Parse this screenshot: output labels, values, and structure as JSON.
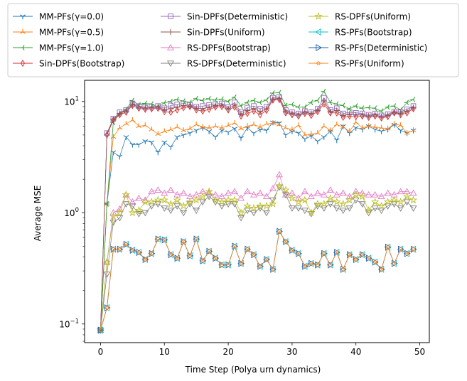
{
  "chart_data": {
    "type": "line",
    "title": "",
    "xlabel": "Time Step (Polya urn dynamics)",
    "ylabel": "Average MSE",
    "yscale": "log",
    "xlim": [
      -2.5,
      51.5
    ],
    "ylim": [
      0.068,
      15.5
    ],
    "xticks": [
      0,
      10,
      20,
      30,
      40,
      50
    ],
    "yticks": [
      {
        "value": 0.1,
        "base": "10",
        "exp": "−1"
      },
      {
        "value": 1,
        "base": "10",
        "exp": "0"
      },
      {
        "value": 10,
        "base": "10",
        "exp": "1"
      }
    ],
    "grid": false,
    "legend_placement": "top, 3 columns, above plot",
    "x": [
      0,
      1,
      2,
      3,
      4,
      5,
      6,
      7,
      8,
      9,
      10,
      11,
      12,
      13,
      14,
      15,
      16,
      17,
      18,
      19,
      20,
      21,
      22,
      23,
      24,
      25,
      26,
      27,
      28,
      29,
      30,
      31,
      32,
      33,
      34,
      35,
      36,
      37,
      38,
      39,
      40,
      41,
      42,
      43,
      44,
      45,
      46,
      47,
      48,
      49
    ],
    "series": [
      {
        "name": "MM-PFs(γ=0.0)",
        "color": "#1f77b4",
        "marker": "tri_down",
        "values": [
          0.088,
          1.2,
          3.5,
          3.2,
          4.8,
          4.1,
          4.1,
          4.4,
          4.3,
          3.5,
          4.3,
          3.9,
          4.8,
          5.0,
          5.2,
          5.5,
          5.8,
          5.4,
          4.8,
          5.5,
          5.3,
          5.7,
          4.7,
          5.8,
          5.2,
          5.6,
          5.5,
          6.5,
          6.4,
          5.0,
          5.4,
          5.2,
          4.6,
          4.9,
          4.4,
          4.8,
          5.4,
          4.5,
          6.0,
          5.2,
          5.8,
          5.6,
          6.0,
          5.6,
          5.4,
          5.6,
          6.2,
          5.5,
          5.2,
          5.5
        ]
      },
      {
        "name": "MM-PFs(γ=0.5)",
        "color": "#ff7f0e",
        "marker": "tri_up",
        "values": [
          0.088,
          1.2,
          4.8,
          5.8,
          6.3,
          6.8,
          6.0,
          6.1,
          5.6,
          5.1,
          5.4,
          5.6,
          5.9,
          5.5,
          5.7,
          6.2,
          5.9,
          5.8,
          6.0,
          5.8,
          6.1,
          6.4,
          5.7,
          6.0,
          6.2,
          5.9,
          6.3,
          6.4,
          6.2,
          5.8,
          5.6,
          6.1,
          5.0,
          5.1,
          5.2,
          6.0,
          5.5,
          6.2,
          5.9,
          5.4,
          6.5,
          5.8,
          6.0,
          5.9,
          5.8,
          5.7,
          6.3,
          6.1,
          5.2,
          5.5
        ]
      },
      {
        "name": "MM-PFs(γ=1.0)",
        "color": "#2ca02c",
        "marker": "tri_left",
        "values": [
          0.088,
          1.2,
          6.5,
          7.8,
          8.5,
          10.2,
          9.3,
          9.6,
          9.5,
          8.9,
          9.7,
          10.0,
          10.4,
          10.1,
          9.8,
          10.6,
          10.2,
          10.6,
          10.3,
          10.5,
          10.0,
          10.9,
          9.1,
          9.8,
          10.2,
          9.8,
          10.3,
          11.9,
          12.0,
          9.2,
          9.4,
          8.9,
          8.9,
          9.8,
          10.2,
          12.3,
          9.8,
          9.5,
          9.2,
          8.6,
          9.1,
          8.7,
          8.8,
          8.7,
          8.2,
          8.9,
          9.1,
          8.4,
          9.8,
          10.4
        ]
      },
      {
        "name": "Sin-DPFs(Bootstrap)",
        "color": "#d62728",
        "marker": "thin_diamond",
        "values": [
          0.088,
          5.0,
          6.8,
          7.6,
          8.0,
          9.2,
          8.7,
          8.5,
          8.6,
          8.7,
          8.1,
          8.0,
          8.4,
          8.8,
          9.0,
          8.4,
          8.2,
          8.5,
          8.9,
          9.0,
          8.4,
          8.9,
          7.4,
          7.8,
          8.2,
          7.6,
          8.3,
          10.3,
          10.4,
          7.9,
          7.6,
          7.4,
          7.8,
          7.5,
          8.1,
          9.5,
          7.9,
          7.9,
          7.2,
          7.4,
          7.3,
          7.4,
          7.2,
          7.4,
          7.1,
          7.3,
          7.9,
          7.6,
          7.9,
          8.6
        ]
      },
      {
        "name": "Sin-DPFs(Deterministic)",
        "color": "#9467bd",
        "marker": "square",
        "values": [
          0.088,
          5.2,
          7.0,
          8.0,
          8.4,
          9.6,
          9.1,
          8.9,
          9.0,
          9.1,
          8.7,
          9.2,
          9.4,
          9.6,
          9.3,
          9.0,
          9.1,
          9.3,
          9.5,
          9.6,
          8.9,
          9.8,
          8.0,
          8.8,
          9.1,
          8.6,
          9.0,
          10.8,
          11.0,
          8.4,
          8.0,
          7.8,
          8.2,
          8.0,
          8.6,
          10.8,
          8.4,
          8.7,
          7.8,
          8.0,
          7.9,
          7.8,
          7.6,
          7.8,
          7.5,
          7.7,
          8.1,
          8.1,
          8.5,
          9.1
        ]
      },
      {
        "name": "Sin-DPFs(Uniform)",
        "color": "#8c564b",
        "marker": "plus",
        "values": [
          0.088,
          5.1,
          6.9,
          7.8,
          8.2,
          9.4,
          8.9,
          8.7,
          8.8,
          8.9,
          8.4,
          8.6,
          8.9,
          9.2,
          9.1,
          8.7,
          8.6,
          8.9,
          9.2,
          9.3,
          8.6,
          9.3,
          7.7,
          8.3,
          8.6,
          8.1,
          8.6,
          10.5,
          10.7,
          8.1,
          7.8,
          7.6,
          8.0,
          7.8,
          8.3,
          10.1,
          8.1,
          8.3,
          7.5,
          7.7,
          7.6,
          7.6,
          7.4,
          7.6,
          7.3,
          7.5,
          8.0,
          7.8,
          8.2,
          8.8
        ]
      },
      {
        "name": "RS-DPFs(Bootstrap)",
        "color": "#e377c2",
        "marker": "triangle_up",
        "values": [
          0.088,
          0.36,
          1.0,
          1.08,
          1.45,
          1.25,
          1.35,
          1.3,
          1.55,
          1.6,
          1.5,
          1.6,
          1.45,
          1.5,
          1.4,
          1.45,
          1.55,
          1.5,
          1.45,
          1.4,
          1.5,
          1.55,
          1.35,
          1.55,
          1.45,
          1.5,
          1.4,
          1.65,
          2.2,
          1.45,
          1.5,
          1.35,
          1.55,
          1.4,
          1.5,
          1.45,
          1.6,
          1.45,
          1.5,
          1.4,
          1.55,
          1.5,
          1.45,
          1.45,
          1.4,
          1.5,
          1.45,
          1.55,
          1.55,
          1.5
        ]
      },
      {
        "name": "RS-DPFs(Deterministic)",
        "color": "#7f7f7f",
        "marker": "triangle_down",
        "values": [
          0.088,
          0.28,
          0.82,
          0.9,
          1.2,
          1.15,
          0.98,
          1.0,
          1.15,
          1.2,
          1.1,
          1.05,
          1.15,
          1.0,
          1.2,
          1.05,
          1.25,
          1.4,
          1.25,
          1.15,
          1.2,
          1.2,
          0.9,
          1.05,
          1.0,
          1.1,
          1.0,
          1.3,
          1.7,
          1.45,
          1.1,
          1.1,
          1.05,
          0.98,
          1.15,
          1.1,
          1.2,
          1.1,
          1.05,
          1.1,
          1.3,
          1.2,
          1.0,
          1.1,
          1.05,
          1.15,
          1.2,
          1.1,
          1.25,
          1.1
        ]
      },
      {
        "name": "RS-DPFs(Uniform)",
        "color": "#bcbd22",
        "marker": "star",
        "values": [
          0.088,
          0.36,
          0.93,
          1.0,
          1.45,
          1.0,
          1.05,
          1.25,
          1.25,
          1.3,
          1.3,
          1.2,
          1.3,
          1.15,
          1.25,
          1.3,
          1.4,
          1.55,
          1.3,
          1.25,
          1.3,
          1.3,
          1.0,
          1.15,
          1.1,
          1.15,
          1.15,
          1.2,
          1.75,
          1.6,
          1.35,
          1.25,
          1.3,
          1.0,
          1.2,
          1.2,
          1.35,
          1.25,
          1.2,
          1.3,
          1.45,
          1.4,
          1.05,
          1.25,
          1.15,
          1.25,
          1.3,
          1.25,
          1.4,
          1.3
        ]
      },
      {
        "name": "RS-PFs(Bootstrap)",
        "color": "#17becf",
        "marker": "triangle_left",
        "values": [
          0.088,
          0.14,
          0.47,
          0.47,
          0.52,
          0.46,
          0.44,
          0.38,
          0.43,
          0.58,
          0.57,
          0.42,
          0.39,
          0.55,
          0.41,
          0.58,
          0.37,
          0.45,
          0.39,
          0.34,
          0.34,
          0.5,
          0.35,
          0.47,
          0.42,
          0.33,
          0.38,
          0.31,
          0.68,
          0.55,
          0.46,
          0.43,
          0.33,
          0.35,
          0.34,
          0.43,
          0.34,
          0.44,
          0.31,
          0.42,
          0.38,
          0.42,
          0.39,
          0.36,
          0.31,
          0.49,
          0.35,
          0.47,
          0.43,
          0.47
        ]
      },
      {
        "name": "RS-PFs(Deterministic)",
        "color": "#1f5fb4",
        "marker": "triangle_right",
        "values": [
          0.088,
          0.14,
          0.47,
          0.47,
          0.52,
          0.46,
          0.44,
          0.38,
          0.43,
          0.58,
          0.57,
          0.42,
          0.39,
          0.55,
          0.41,
          0.58,
          0.37,
          0.45,
          0.39,
          0.34,
          0.34,
          0.5,
          0.35,
          0.47,
          0.42,
          0.33,
          0.38,
          0.31,
          0.68,
          0.55,
          0.46,
          0.43,
          0.33,
          0.35,
          0.34,
          0.43,
          0.34,
          0.44,
          0.31,
          0.42,
          0.38,
          0.42,
          0.39,
          0.36,
          0.31,
          0.49,
          0.35,
          0.47,
          0.43,
          0.47
        ]
      },
      {
        "name": "RS-PFs(Uniform)",
        "color": "#ff7f0e",
        "marker": "circle",
        "values": [
          0.088,
          0.14,
          0.47,
          0.47,
          0.52,
          0.46,
          0.44,
          0.38,
          0.43,
          0.58,
          0.57,
          0.42,
          0.39,
          0.55,
          0.41,
          0.58,
          0.37,
          0.45,
          0.39,
          0.34,
          0.34,
          0.5,
          0.35,
          0.47,
          0.42,
          0.33,
          0.38,
          0.31,
          0.68,
          0.55,
          0.46,
          0.43,
          0.33,
          0.35,
          0.34,
          0.43,
          0.34,
          0.44,
          0.31,
          0.42,
          0.38,
          0.42,
          0.39,
          0.36,
          0.31,
          0.49,
          0.35,
          0.47,
          0.43,
          0.47
        ]
      }
    ]
  }
}
